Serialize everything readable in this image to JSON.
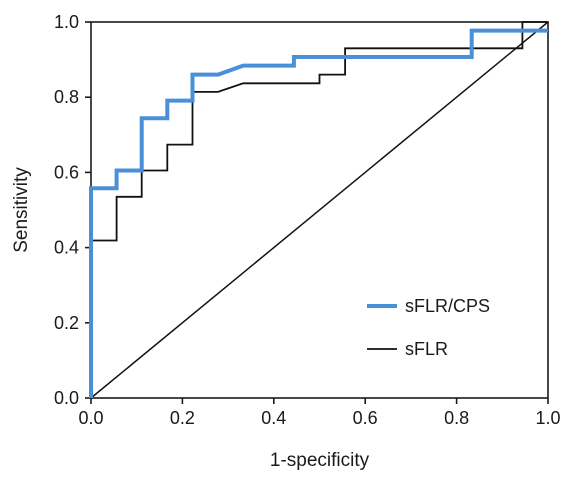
{
  "chart_data": {
    "type": "line",
    "title": "",
    "xlabel": "1-specificity",
    "ylabel": "Sensitivity",
    "xlim": [
      0,
      1
    ],
    "ylim": [
      0,
      1
    ],
    "x_ticks": [
      "0.0",
      "0.2",
      "0.4",
      "0.6",
      "0.8",
      "1.0"
    ],
    "y_ticks": [
      "0.0",
      "0.2",
      "0.4",
      "0.6",
      "0.8",
      "1.0"
    ],
    "grid": false,
    "legend_position": "bottom-right",
    "series": [
      {
        "name": "sFLR/CPS",
        "color": "#4a90d9",
        "x": [
          0,
          0,
          0.056,
          0.056,
          0.111,
          0.111,
          0.167,
          0.167,
          0.222,
          0.222,
          0.278,
          0.333,
          0.444,
          0.444,
          0.833,
          0.833,
          0.944,
          1.0
        ],
        "y": [
          0,
          0.558,
          0.558,
          0.605,
          0.605,
          0.744,
          0.744,
          0.791,
          0.791,
          0.86,
          0.86,
          0.884,
          0.884,
          0.907,
          0.907,
          0.977,
          0.977,
          0.977
        ]
      },
      {
        "name": "sFLR",
        "color": "#111111",
        "x": [
          0,
          0,
          0.056,
          0.056,
          0.111,
          0.111,
          0.167,
          0.167,
          0.222,
          0.222,
          0.278,
          0.333,
          0.389,
          0.5,
          0.5,
          0.556,
          0.556,
          0.944,
          0.944,
          1.0
        ],
        "y": [
          0,
          0.419,
          0.419,
          0.535,
          0.535,
          0.605,
          0.605,
          0.674,
          0.674,
          0.814,
          0.814,
          0.837,
          0.837,
          0.837,
          0.86,
          0.86,
          0.93,
          0.93,
          1.0,
          1.0
        ]
      }
    ],
    "reference_line": {
      "x": [
        0,
        1
      ],
      "y": [
        0,
        1
      ],
      "color": "#111111"
    }
  }
}
